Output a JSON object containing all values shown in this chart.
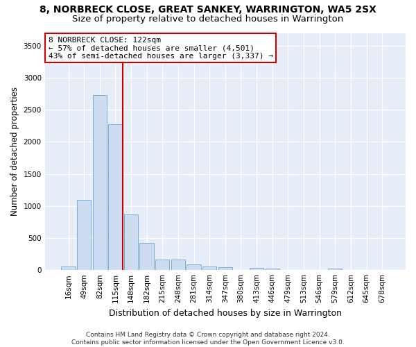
{
  "title1": "8, NORBRECK CLOSE, GREAT SANKEY, WARRINGTON, WA5 2SX",
  "title2": "Size of property relative to detached houses in Warrington",
  "xlabel": "Distribution of detached houses by size in Warrington",
  "ylabel": "Number of detached properties",
  "categories": [
    "16sqm",
    "49sqm",
    "82sqm",
    "115sqm",
    "148sqm",
    "182sqm",
    "215sqm",
    "248sqm",
    "281sqm",
    "314sqm",
    "347sqm",
    "380sqm",
    "413sqm",
    "446sqm",
    "479sqm",
    "513sqm",
    "546sqm",
    "579sqm",
    "612sqm",
    "645sqm",
    "678sqm"
  ],
  "values": [
    55,
    1100,
    2730,
    2280,
    870,
    420,
    165,
    165,
    90,
    60,
    50,
    5,
    35,
    25,
    5,
    5,
    5,
    20,
    5,
    5,
    5
  ],
  "bar_color": "#cddcf0",
  "bar_edgecolor": "#7aaede",
  "vline_color": "#cc0000",
  "annotation_text": "8 NORBRECK CLOSE: 122sqm\n← 57% of detached houses are smaller (4,501)\n43% of semi-detached houses are larger (3,337) →",
  "annotation_box_facecolor": "#ffffff",
  "annotation_box_edgecolor": "#cc0000",
  "ylim": [
    0,
    3700
  ],
  "yticks": [
    0,
    500,
    1000,
    1500,
    2000,
    2500,
    3000,
    3500
  ],
  "footer": "Contains HM Land Registry data © Crown copyright and database right 2024.\nContains public sector information licensed under the Open Government Licence v3.0.",
  "fig_facecolor": "#ffffff",
  "ax_facecolor": "#e8eef8",
  "grid_color": "#ffffff",
  "title1_fontsize": 10,
  "title2_fontsize": 9.5,
  "xlabel_fontsize": 9,
  "ylabel_fontsize": 8.5,
  "tick_fontsize": 7.5,
  "annotation_fontsize": 8,
  "footer_fontsize": 6.5
}
